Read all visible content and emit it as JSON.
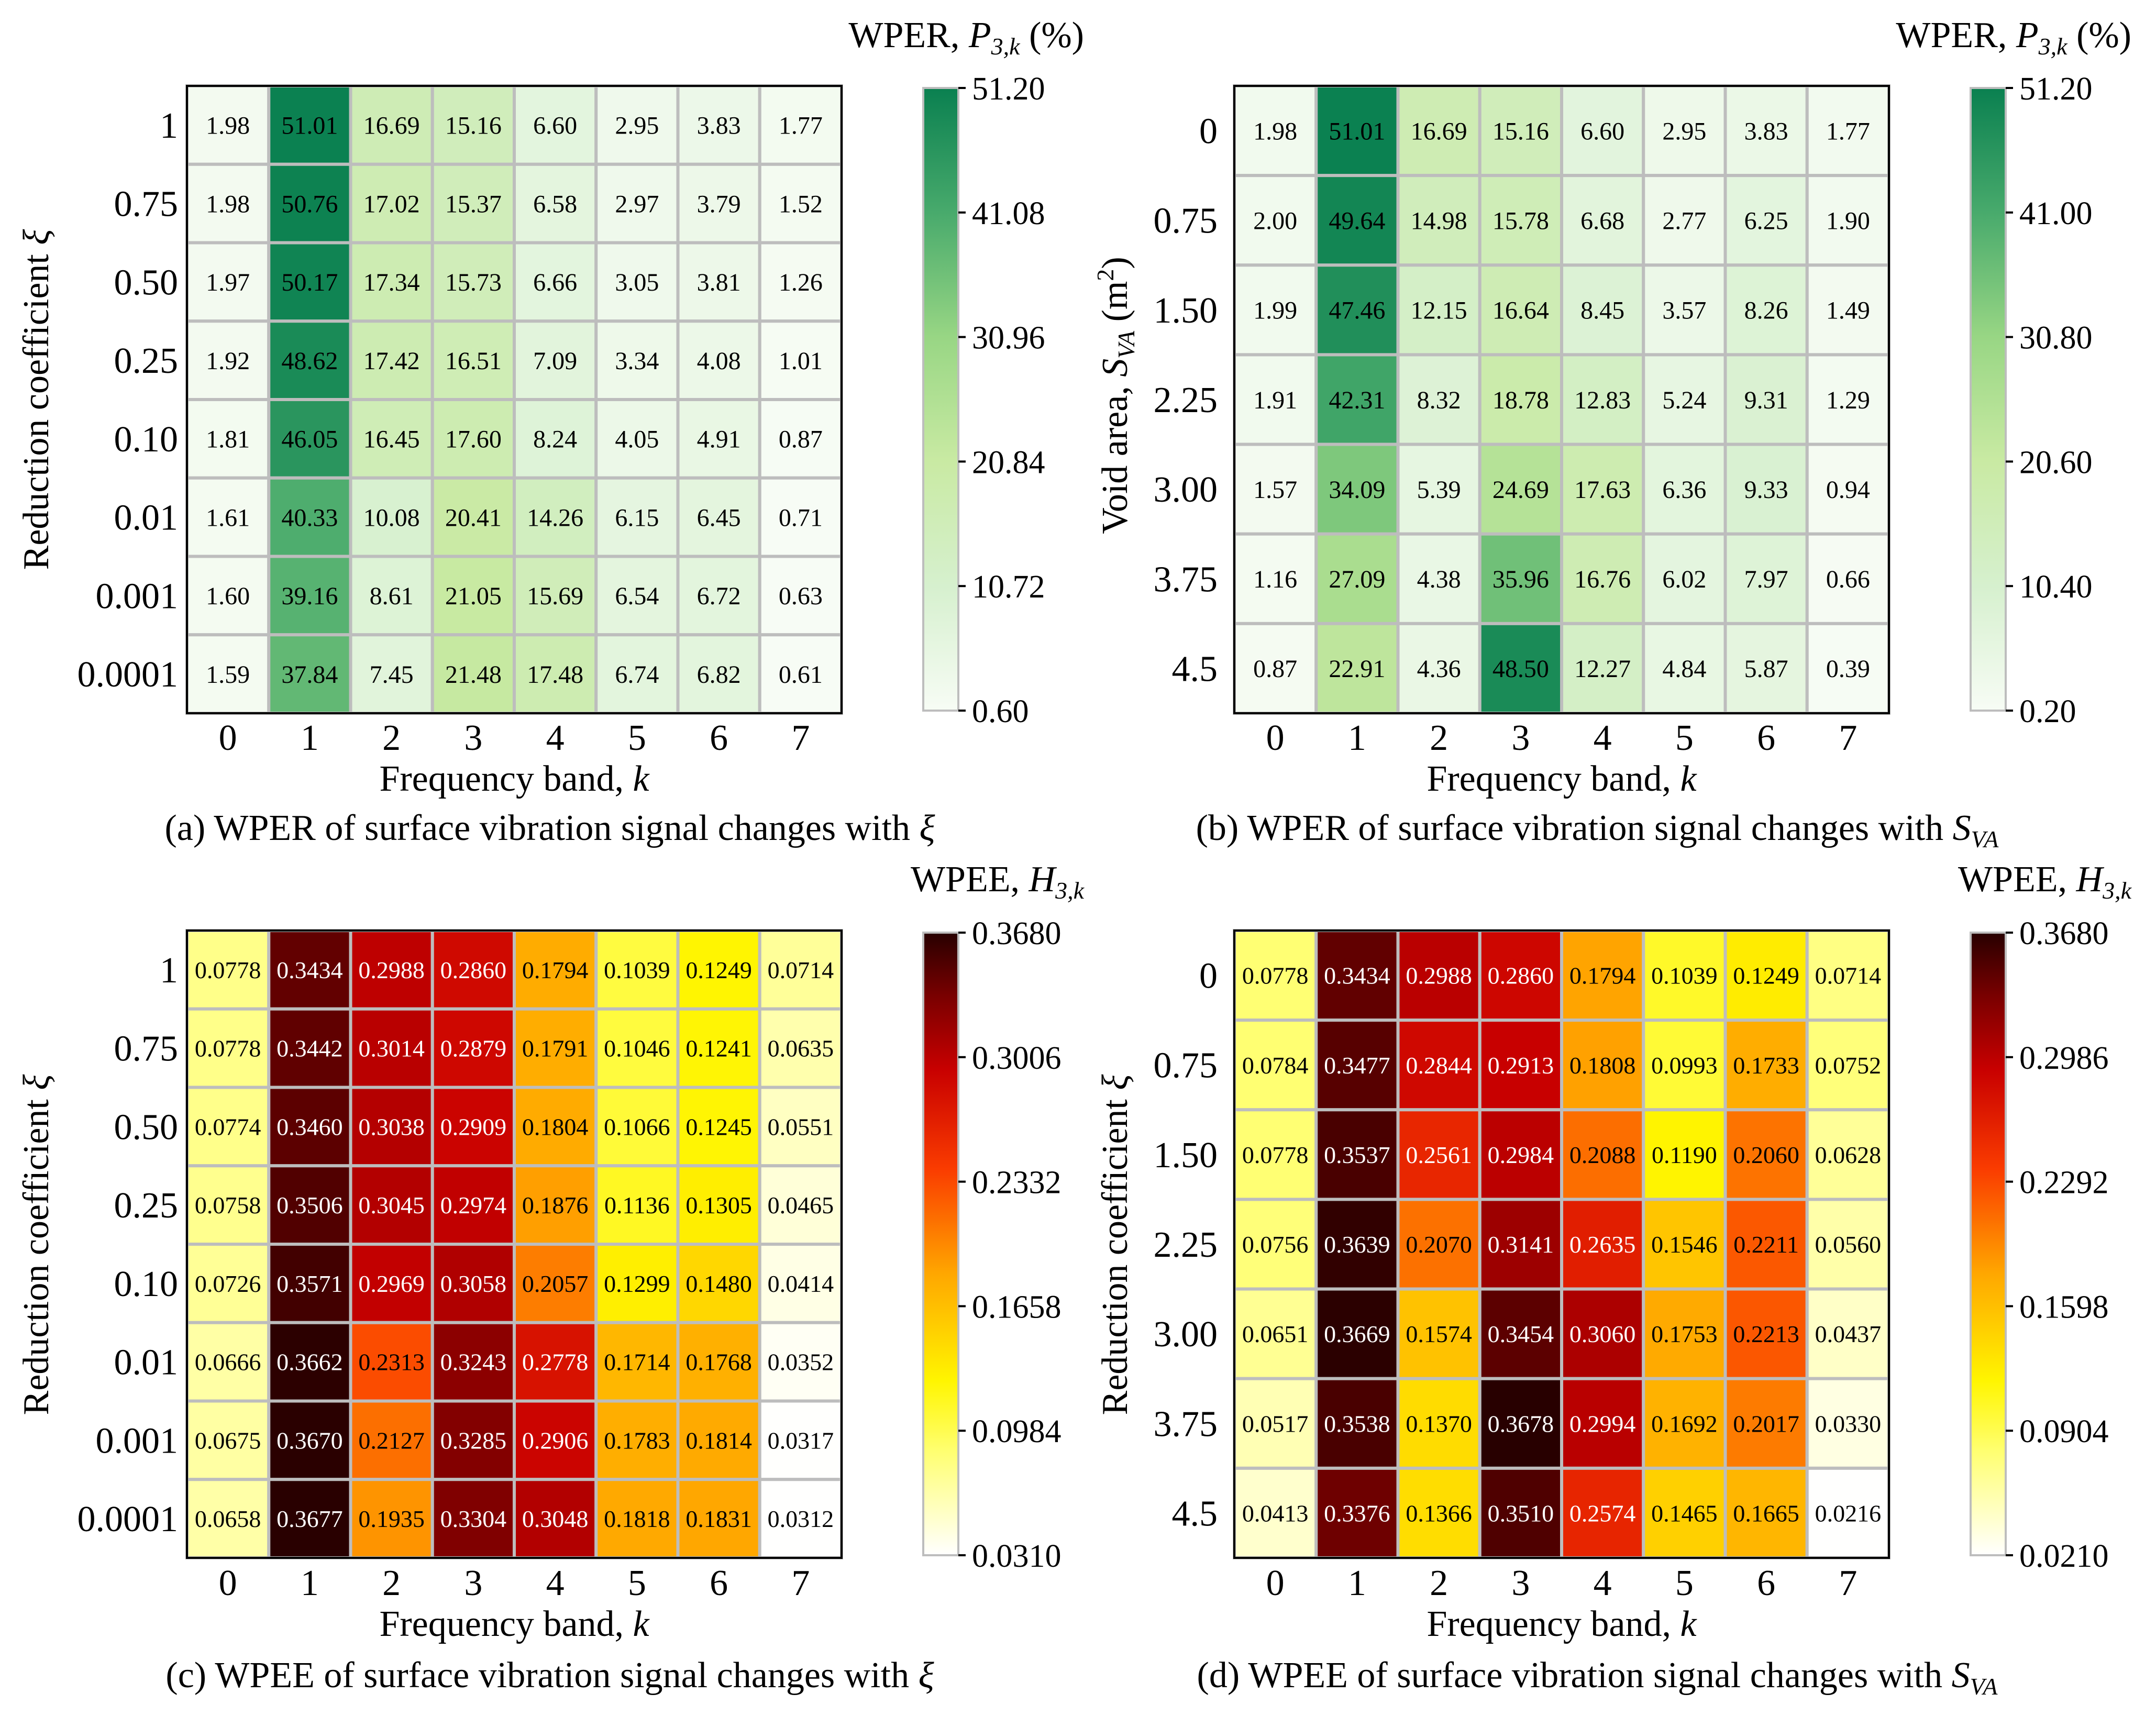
{
  "chart_data": [
    {
      "type": "heatmap",
      "id": "a",
      "colormap": "greens",
      "caption": {
        "prefix": "(a) WPER of surface vibration signal changes with ",
        "symbol": "ξ",
        "sub": ""
      },
      "colorbar_title": {
        "text": "WPER, ",
        "symbol": "P",
        "sub": "3,k",
        "suffix": " (%)"
      },
      "xlabel": {
        "text": "Frequency band, ",
        "symbol": "k"
      },
      "ylabel": {
        "text": "Reduction coefficient ",
        "symbol": "ξ",
        "paren": false
      },
      "x_categories": [
        "0",
        "1",
        "2",
        "3",
        "4",
        "5",
        "6",
        "7"
      ],
      "y_categories": [
        "1",
        "0.75",
        "0.50",
        "0.25",
        "0.10",
        "0.01",
        "0.001",
        "0.0001"
      ],
      "values": [
        [
          "1.98",
          "51.01",
          "16.69",
          "15.16",
          "6.60",
          "2.95",
          "3.83",
          "1.77"
        ],
        [
          "1.98",
          "50.76",
          "17.02",
          "15.37",
          "6.58",
          "2.97",
          "3.79",
          "1.52"
        ],
        [
          "1.97",
          "50.17",
          "17.34",
          "15.73",
          "6.66",
          "3.05",
          "3.81",
          "1.26"
        ],
        [
          "1.92",
          "48.62",
          "17.42",
          "16.51",
          "7.09",
          "3.34",
          "4.08",
          "1.01"
        ],
        [
          "1.81",
          "46.05",
          "16.45",
          "17.60",
          "8.24",
          "4.05",
          "4.91",
          "0.87"
        ],
        [
          "1.61",
          "40.33",
          "10.08",
          "20.41",
          "14.26",
          "6.15",
          "6.45",
          "0.71"
        ],
        [
          "1.60",
          "39.16",
          "8.61",
          "21.05",
          "15.69",
          "6.54",
          "6.72",
          "0.63"
        ],
        [
          "1.59",
          "37.84",
          "7.45",
          "21.48",
          "17.48",
          "6.74",
          "6.82",
          "0.61"
        ]
      ],
      "vmin": 0.6,
      "vmax": 51.2,
      "colorbar_ticks": [
        "51.20",
        "41.08",
        "30.96",
        "20.84",
        "10.72",
        "0.60"
      ]
    },
    {
      "type": "heatmap",
      "id": "b",
      "colormap": "greens",
      "caption": {
        "prefix": "(b) WPER of surface vibration signal changes with ",
        "symbol": "S",
        "sub": "VA"
      },
      "colorbar_title": {
        "text": "WPER, ",
        "symbol": "P",
        "sub": "3,k",
        "suffix": " (%)"
      },
      "xlabel": {
        "text": "Frequency band, ",
        "symbol": "k"
      },
      "ylabel": {
        "text": "Void area, ",
        "symbol": "S",
        "sub": "VA",
        "unit": " (m",
        "unit_sup": "2",
        "unit_close": ")"
      },
      "x_categories": [
        "0",
        "1",
        "2",
        "3",
        "4",
        "5",
        "6",
        "7"
      ],
      "y_categories": [
        "0",
        "0.75",
        "1.50",
        "2.25",
        "3.00",
        "3.75",
        "4.5"
      ],
      "values": [
        [
          "1.98",
          "51.01",
          "16.69",
          "15.16",
          "6.60",
          "2.95",
          "3.83",
          "1.77"
        ],
        [
          "2.00",
          "49.64",
          "14.98",
          "15.78",
          "6.68",
          "2.77",
          "6.25",
          "1.90"
        ],
        [
          "1.99",
          "47.46",
          "12.15",
          "16.64",
          "8.45",
          "3.57",
          "8.26",
          "1.49"
        ],
        [
          "1.91",
          "42.31",
          "8.32",
          "18.78",
          "12.83",
          "5.24",
          "9.31",
          "1.29"
        ],
        [
          "1.57",
          "34.09",
          "5.39",
          "24.69",
          "17.63",
          "6.36",
          "9.33",
          "0.94"
        ],
        [
          "1.16",
          "27.09",
          "4.38",
          "35.96",
          "16.76",
          "6.02",
          "7.97",
          "0.66"
        ],
        [
          "0.87",
          "22.91",
          "4.36",
          "48.50",
          "12.27",
          "4.84",
          "5.87",
          "0.39"
        ]
      ],
      "vmin": 0.2,
      "vmax": 51.2,
      "colorbar_ticks": [
        "51.20",
        "41.00",
        "30.80",
        "20.60",
        "10.40",
        "0.20"
      ]
    },
    {
      "type": "heatmap",
      "id": "c",
      "colormap": "hot",
      "caption": {
        "prefix": "(c) WPEE of surface vibration signal changes with ",
        "symbol": "ξ",
        "sub": ""
      },
      "colorbar_title": {
        "text": "WPEE, ",
        "symbol": "H",
        "sub": "3,k",
        "suffix": ""
      },
      "xlabel": {
        "text": "Frequency band, ",
        "symbol": "k"
      },
      "ylabel": {
        "text": "Reduction coefficient ",
        "symbol": "ξ",
        "paren": false
      },
      "x_categories": [
        "0",
        "1",
        "2",
        "3",
        "4",
        "5",
        "6",
        "7"
      ],
      "y_categories": [
        "1",
        "0.75",
        "0.50",
        "0.25",
        "0.10",
        "0.01",
        "0.001",
        "0.0001"
      ],
      "values": [
        [
          "0.0778",
          "0.3434",
          "0.2988",
          "0.2860",
          "0.1794",
          "0.1039",
          "0.1249",
          "0.0714"
        ],
        [
          "0.0778",
          "0.3442",
          "0.3014",
          "0.2879",
          "0.1791",
          "0.1046",
          "0.1241",
          "0.0635"
        ],
        [
          "0.0774",
          "0.3460",
          "0.3038",
          "0.2909",
          "0.1804",
          "0.1066",
          "0.1245",
          "0.0551"
        ],
        [
          "0.0758",
          "0.3506",
          "0.3045",
          "0.2974",
          "0.1876",
          "0.1136",
          "0.1305",
          "0.0465"
        ],
        [
          "0.0726",
          "0.3571",
          "0.2969",
          "0.3058",
          "0.2057",
          "0.1299",
          "0.1480",
          "0.0414"
        ],
        [
          "0.0666",
          "0.3662",
          "0.2313",
          "0.3243",
          "0.2778",
          "0.1714",
          "0.1768",
          "0.0352"
        ],
        [
          "0.0675",
          "0.3670",
          "0.2127",
          "0.3285",
          "0.2906",
          "0.1783",
          "0.1814",
          "0.0317"
        ],
        [
          "0.0658",
          "0.3677",
          "0.1935",
          "0.3304",
          "0.3048",
          "0.1818",
          "0.1831",
          "0.0312"
        ]
      ],
      "vmin": 0.031,
      "vmax": 0.368,
      "colorbar_ticks": [
        "0.3680",
        "0.3006",
        "0.2332",
        "0.1658",
        "0.0984",
        "0.0310"
      ]
    },
    {
      "type": "heatmap",
      "id": "d",
      "colormap": "hot",
      "caption": {
        "prefix": "(d) WPEE of surface vibration signal changes with ",
        "symbol": "S",
        "sub": "VA"
      },
      "colorbar_title": {
        "text": "WPEE, ",
        "symbol": "H",
        "sub": "3,k",
        "suffix": ""
      },
      "xlabel": {
        "text": "Frequency band, ",
        "symbol": "k"
      },
      "ylabel": {
        "text": "Reduction coefficient ",
        "symbol": "ξ",
        "paren": false
      },
      "x_categories": [
        "0",
        "1",
        "2",
        "3",
        "4",
        "5",
        "6",
        "7"
      ],
      "y_categories": [
        "0",
        "0.75",
        "1.50",
        "2.25",
        "3.00",
        "3.75",
        "4.5"
      ],
      "values": [
        [
          "0.0778",
          "0.3434",
          "0.2988",
          "0.2860",
          "0.1794",
          "0.1039",
          "0.1249",
          "0.0714"
        ],
        [
          "0.0784",
          "0.3477",
          "0.2844",
          "0.2913",
          "0.1808",
          "0.0993",
          "0.1733",
          "0.0752"
        ],
        [
          "0.0778",
          "0.3537",
          "0.2561",
          "0.2984",
          "0.2088",
          "0.1190",
          "0.2060",
          "0.0628"
        ],
        [
          "0.0756",
          "0.3639",
          "0.2070",
          "0.3141",
          "0.2635",
          "0.1546",
          "0.2211",
          "0.0560"
        ],
        [
          "0.0651",
          "0.3669",
          "0.1574",
          "0.3454",
          "0.3060",
          "0.1753",
          "0.2213",
          "0.0437"
        ],
        [
          "0.0517",
          "0.3538",
          "0.1370",
          "0.3678",
          "0.2994",
          "0.1692",
          "0.2017",
          "0.0330"
        ],
        [
          "0.0413",
          "0.3376",
          "0.1366",
          "0.3510",
          "0.2574",
          "0.1465",
          "0.1665",
          "0.0216"
        ]
      ],
      "vmin": 0.021,
      "vmax": 0.368,
      "colorbar_ticks": [
        "0.3680",
        "0.2986",
        "0.2292",
        "0.1598",
        "0.0904",
        "0.0210"
      ]
    }
  ]
}
